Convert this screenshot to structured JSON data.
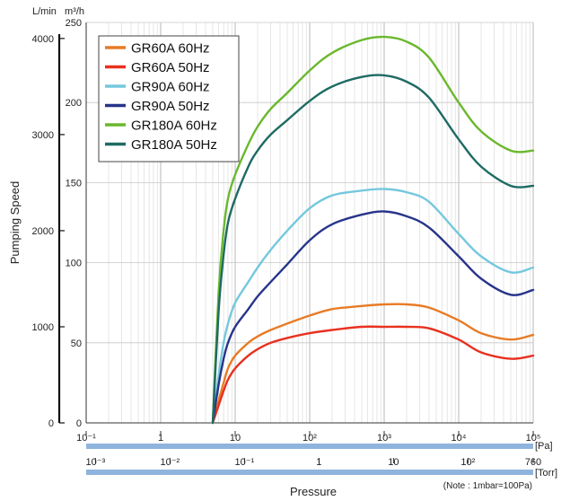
{
  "chart_data": {
    "type": "line",
    "title": "",
    "xlabel": "Pressure",
    "ylabel": "Pumping Speed",
    "y_units_left": "L/min",
    "y_units_right": "m³/h",
    "note": "(Note : 1mbar=100Pa)",
    "x_scale": "log",
    "xlim_pa": [
      0.1,
      100000
    ],
    "ylim_m3h": [
      0,
      250
    ],
    "ylim_lmin": [
      0,
      4166.7
    ],
    "grid": true,
    "legend_position": "top-left",
    "pa_axis": {
      "unit": "[Pa]",
      "ticks": [
        {
          "value": 0.1,
          "label": "10⁻¹"
        },
        {
          "value": 1,
          "label": "1"
        },
        {
          "value": 10,
          "label": "10"
        },
        {
          "value": 100,
          "label": "10²"
        },
        {
          "value": 1000,
          "label": "10³"
        },
        {
          "value": 10000,
          "label": "10⁴"
        },
        {
          "value": 100000,
          "label": "10⁵"
        }
      ]
    },
    "torr_axis": {
      "unit": "[Torr]",
      "ticks": [
        {
          "value": 0.1333,
          "label": "10⁻³"
        },
        {
          "value": 1.333,
          "label": "10⁻²"
        },
        {
          "value": 13.33,
          "label": "10⁻¹"
        },
        {
          "value": 133.3,
          "label": "1"
        },
        {
          "value": 1333,
          "label": "10"
        },
        {
          "value": 13330,
          "label": "10²"
        },
        {
          "value": 101325,
          "label": "760"
        }
      ]
    },
    "y_ticks_m3h": [
      {
        "value": 0,
        "label": "0"
      },
      {
        "value": 50,
        "label": "50"
      },
      {
        "value": 100,
        "label": "100"
      },
      {
        "value": 150,
        "label": "150"
      },
      {
        "value": 200,
        "label": "200"
      },
      {
        "value": 250,
        "label": "250"
      }
    ],
    "y_ticks_lmin": [
      {
        "value": 0,
        "label": "0"
      },
      {
        "value": 1000,
        "label": "1000"
      },
      {
        "value": 2000,
        "label": "2000"
      },
      {
        "value": 3000,
        "label": "3000"
      },
      {
        "value": 4000,
        "label": "4000"
      }
    ],
    "x_pa": [
      5,
      6,
      7,
      8,
      10,
      15,
      20,
      30,
      50,
      100,
      200,
      500,
      1000,
      2000,
      4000,
      10000,
      20000,
      50000,
      100000
    ],
    "series": [
      {
        "name": "GR60A 60Hz",
        "color": "#e87b25",
        "values": [
          0,
          14,
          25,
          34,
          42,
          50,
          54,
          58,
          62,
          67,
          71,
          73,
          74,
          74,
          72,
          64,
          56,
          52,
          55
        ]
      },
      {
        "name": "GR60A 50Hz",
        "color": "#e8311f",
        "values": [
          0,
          11,
          20,
          27,
          34,
          42,
          46,
          50,
          53,
          56,
          58,
          60,
          60,
          60,
          59,
          52,
          44,
          40,
          42
        ]
      },
      {
        "name": "GR90A 60Hz",
        "color": "#74c8de",
        "values": [
          0,
          30,
          50,
          62,
          75,
          88,
          97,
          108,
          120,
          134,
          142,
          145,
          146,
          144,
          138,
          118,
          104,
          94,
          97
        ]
      },
      {
        "name": "GR90A 50Hz",
        "color": "#27348b",
        "values": [
          0,
          24,
          40,
          50,
          60,
          71,
          79,
          88,
          99,
          114,
          124,
          130,
          132,
          129,
          122,
          104,
          90,
          80,
          83
        ]
      },
      {
        "name": "GR180A 60Hz",
        "color": "#6ab82e",
        "values": [
          0,
          82,
          120,
          140,
          155,
          174,
          185,
          196,
          206,
          220,
          231,
          239,
          241,
          238,
          228,
          200,
          182,
          170,
          170
        ]
      },
      {
        "name": "GR180A 50Hz",
        "color": "#1e6b63",
        "values": [
          0,
          70,
          105,
          125,
          140,
          160,
          170,
          180,
          189,
          201,
          210,
          216,
          217,
          213,
          203,
          177,
          160,
          148,
          148
        ]
      }
    ]
  }
}
